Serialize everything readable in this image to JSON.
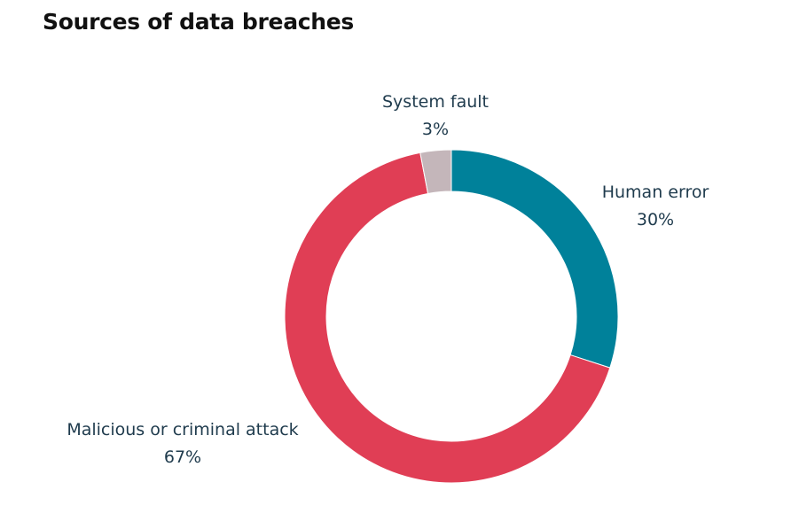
{
  "chart_data": {
    "type": "pie",
    "donut": true,
    "title": "Sources of data breaches",
    "slices": [
      {
        "label": "Human error",
        "value": 30,
        "value_label": "30%",
        "color": "#00819a"
      },
      {
        "label": "Malicious or criminal attack",
        "value": 67,
        "value_label": "67%",
        "color": "#e03e55"
      },
      {
        "label": "System fault",
        "value": 3,
        "value_label": "3%",
        "color": "#c4b6ba"
      }
    ],
    "start": "12 o'clock",
    "direction": "clockwise",
    "legend": "none"
  }
}
